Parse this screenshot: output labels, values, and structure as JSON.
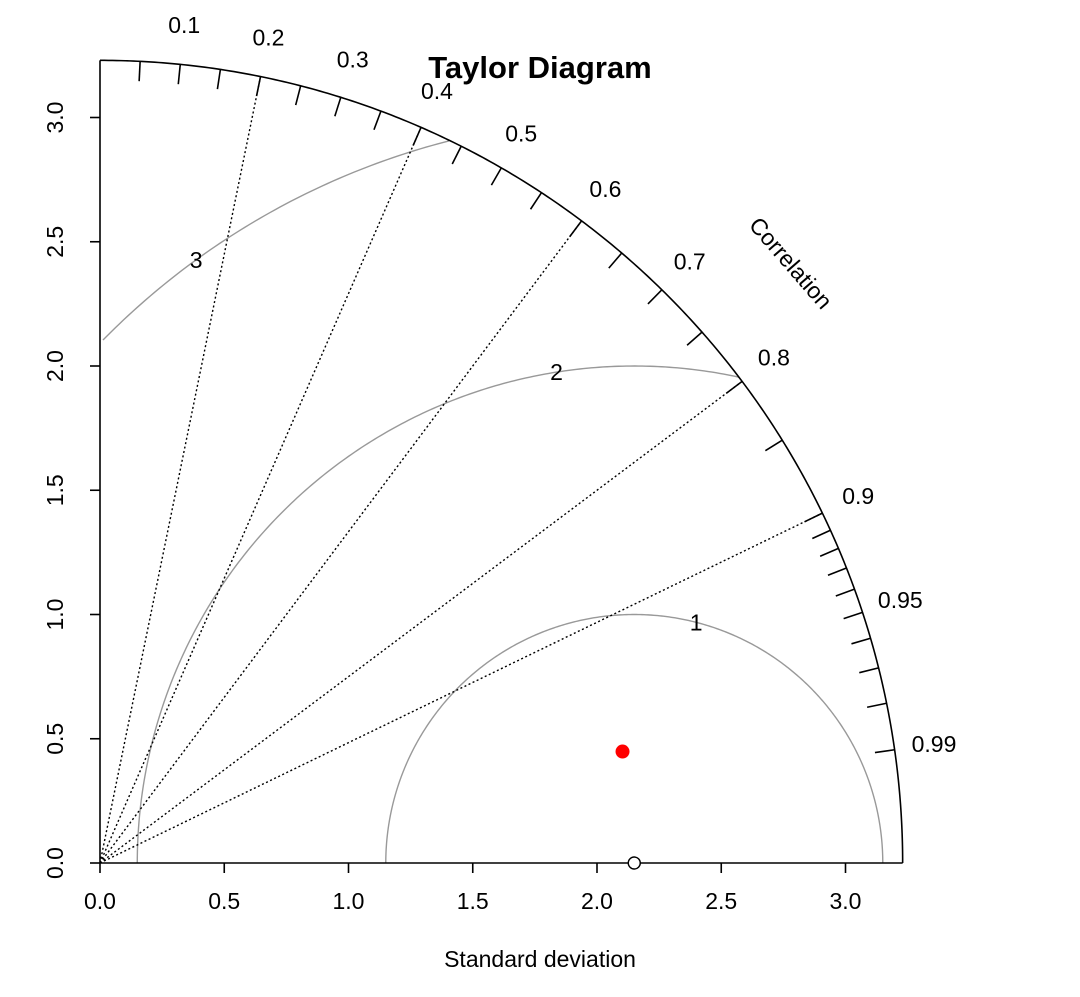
{
  "chart_data": {
    "type": "scatter",
    "subtype": "taylor-diagram",
    "title": "Taylor Diagram",
    "xlabel": "Standard deviation",
    "ylabel": "",
    "correlation_label": "Correlation",
    "sd_range": [
      0,
      3.23
    ],
    "sd_ticks": [
      "0.0",
      "0.5",
      "1.0",
      "1.5",
      "2.0",
      "2.5",
      "3.0"
    ],
    "sd_tick_values": [
      0,
      0.5,
      1.0,
      1.5,
      2.0,
      2.5,
      3.0
    ],
    "correlation_ticks_labeled": [
      "0.1",
      "0.2",
      "0.3",
      "0.4",
      "0.5",
      "0.6",
      "0.7",
      "0.8",
      "0.9",
      "0.95",
      "0.99"
    ],
    "correlation_tick_values_labeled": [
      0.1,
      0.2,
      0.3,
      0.4,
      0.5,
      0.6,
      0.7,
      0.8,
      0.9,
      0.95,
      0.99
    ],
    "correlation_ticks_minor": [
      0.05,
      0.15,
      0.25,
      0.35,
      0.45,
      0.55,
      0.65,
      0.75,
      0.85,
      0.91,
      0.92,
      0.93,
      0.94,
      0.96,
      0.97,
      0.98
    ],
    "correlation_radial_lines": [
      0.2,
      0.4,
      0.6,
      0.8,
      0.9
    ],
    "rms_arcs": [
      {
        "value": 1,
        "label": "1"
      },
      {
        "value": 2,
        "label": "2"
      },
      {
        "value": 3,
        "label": "3"
      }
    ],
    "reference": {
      "sd": 2.15,
      "correlation": 1.0
    },
    "model": {
      "sd": 2.15,
      "correlation": 0.978
    },
    "colors": {
      "model": "#ff0000",
      "reference": "#000000",
      "rms_arcs": "#999999"
    }
  }
}
